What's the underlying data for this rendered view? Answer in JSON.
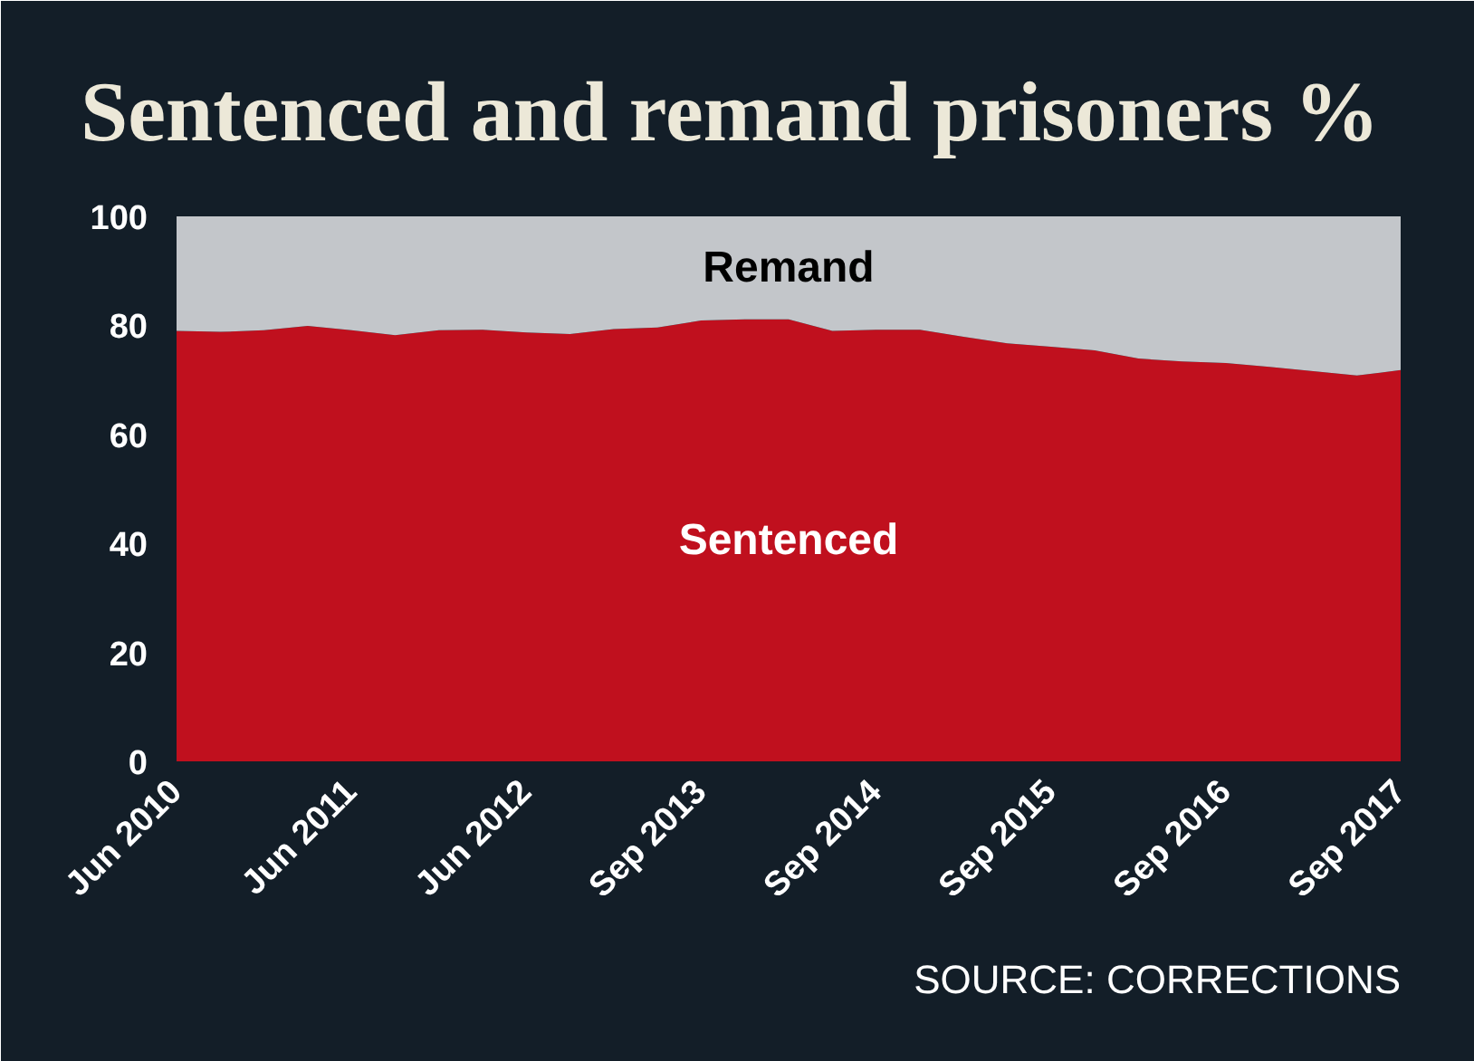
{
  "chart_data": {
    "type": "area",
    "title": "Sentenced and remand prisoners %",
    "stacked": true,
    "categories": [
      "Jun 2010",
      null,
      null,
      null,
      "Jun 2011",
      null,
      null,
      null,
      "Jun 2012",
      null,
      null,
      null,
      "Sep 2013",
      null,
      null,
      null,
      "Sep 2014",
      null,
      null,
      null,
      "Sep 2015",
      null,
      null,
      null,
      "Sep 2016",
      null,
      null,
      null,
      "Sep 2017"
    ],
    "series": [
      {
        "name": "Sentenced",
        "color": "#c0101e",
        "values": [
          79.0,
          78.8,
          79.1,
          79.9,
          79.1,
          78.2,
          79.1,
          79.2,
          78.7,
          78.4,
          79.3,
          79.6,
          80.9,
          81.1,
          81.1,
          79.0,
          79.2,
          79.2,
          77.9,
          76.7,
          76.1,
          75.4,
          73.9,
          73.4,
          73.1,
          72.4,
          71.6,
          70.8,
          71.8
        ]
      },
      {
        "name": "Remand",
        "color": "#c3c6ca",
        "values": [
          21.0,
          21.2,
          20.9,
          20.1,
          20.9,
          21.8,
          20.9,
          20.8,
          21.3,
          21.6,
          20.7,
          20.4,
          19.1,
          18.9,
          18.9,
          21.0,
          20.8,
          20.8,
          22.1,
          23.3,
          23.9,
          24.6,
          26.1,
          26.6,
          26.9,
          27.6,
          28.4,
          29.2,
          28.2
        ]
      }
    ],
    "ylim": [
      0,
      100
    ],
    "yticks": [
      0,
      20,
      40,
      60,
      80,
      100
    ],
    "annotations": [
      "SOURCE: CORRECTIONS"
    ]
  }
}
